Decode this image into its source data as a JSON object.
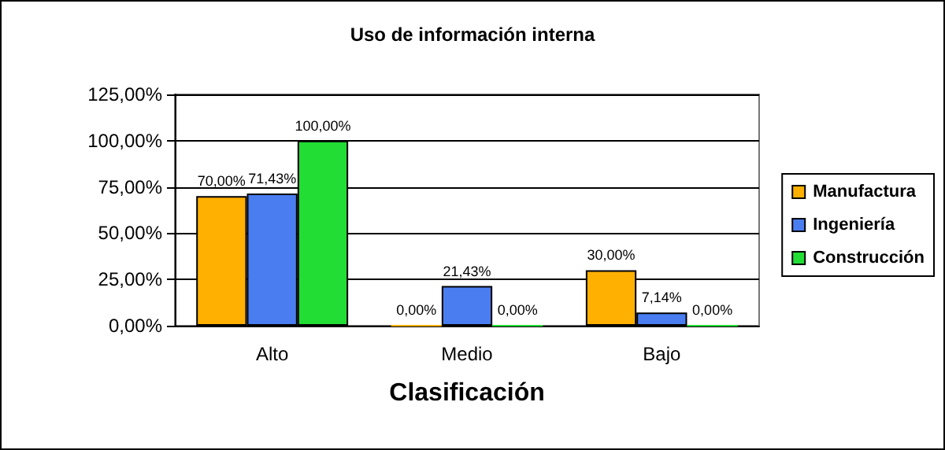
{
  "chart_data": {
    "type": "bar",
    "title": "Uso de información interna",
    "xlabel": "Clasificación",
    "categories": [
      "Alto",
      "Medio",
      "Bajo"
    ],
    "series": [
      {
        "name": "Manufactura",
        "color": "#ffb000",
        "values": [
          70,
          0,
          30
        ],
        "value_labels": [
          "70,00%",
          "0,00%",
          "30,00%"
        ]
      },
      {
        "name": "Ingeniería",
        "color": "#4a7ef0",
        "values": [
          71.43,
          21.43,
          7.14
        ],
        "value_labels": [
          "71,43%",
          "21,43%",
          "7,14%"
        ]
      },
      {
        "name": "Construcción",
        "color": "#22dd33",
        "values": [
          100,
          0,
          0
        ],
        "value_labels": [
          "100,00%",
          "0,00%",
          "0,00%"
        ]
      }
    ],
    "ylim": [
      0,
      125
    ],
    "yticks": [
      {
        "value": 0,
        "label": "0,00%"
      },
      {
        "value": 25,
        "label": "25,00%"
      },
      {
        "value": 50,
        "label": "50,00%"
      },
      {
        "value": 75,
        "label": "75,00%"
      },
      {
        "value": 100,
        "label": "100,00%"
      },
      {
        "value": 125,
        "label": "125,00%"
      }
    ],
    "grid": "y",
    "legend": "right"
  }
}
